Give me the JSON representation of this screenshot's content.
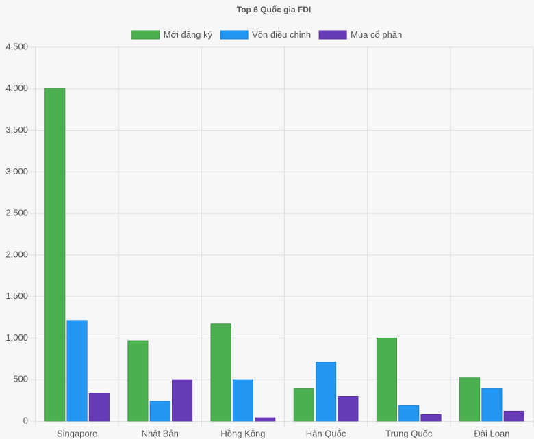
{
  "chart_data": {
    "type": "bar",
    "title": "Top 6 Quốc gia FDI",
    "categories": [
      "Singapore",
      "Nhật Bản",
      "Hồng Kông",
      "Hàn Quốc",
      "Trung Quốc",
      "Đài Loan"
    ],
    "series": [
      {
        "name": "Mới đăng ký",
        "color": "#4caf50",
        "values": [
          4010,
          970,
          1170,
          390,
          1000,
          520
        ]
      },
      {
        "name": "Vốn điều chỉnh",
        "color": "#2196f3",
        "values": [
          1210,
          240,
          500,
          710,
          190,
          390
        ]
      },
      {
        "name": "Mua cổ phần",
        "color": "#673ab7",
        "values": [
          340,
          500,
          40,
          300,
          80,
          120
        ]
      }
    ],
    "ylim": [
      0,
      4500
    ],
    "yticks": [
      0,
      500,
      {
        "value": 1000,
        "label": "1.000"
      },
      {
        "value": 1500,
        "label": "1.500"
      },
      {
        "value": 2000,
        "label": "2.000"
      },
      {
        "value": 2500,
        "label": "2.500"
      },
      {
        "value": 3000,
        "label": "3.000"
      },
      {
        "value": 3500,
        "label": "3.500"
      },
      {
        "value": 4000,
        "label": "4.000"
      },
      {
        "value": 4500,
        "label": "4.500"
      }
    ],
    "grid": true,
    "legend": "top"
  }
}
